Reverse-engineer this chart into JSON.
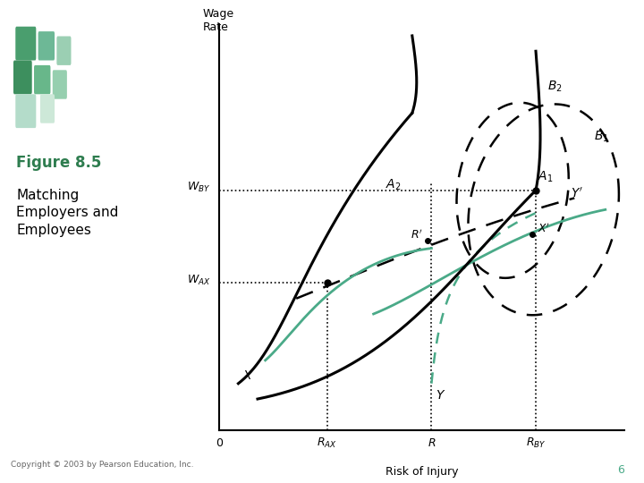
{
  "title_bold": "Figure 8.5",
  "title_normal": "Matching\nEmployers and\nEmployees",
  "title_color": "#2e7d4f",
  "xlabel": "Risk of Injury",
  "ylabel": "Wage\nRate",
  "copyright": "Copyright © 2003 by Pearson Education, Inc.",
  "page_num": "6",
  "bg_color": "#ffffff",
  "teal_color": "#4aaa88",
  "black": "#000000",
  "gray": "#555555",
  "rax": 0.28,
  "r": 0.55,
  "rby": 0.82,
  "wax": 0.38,
  "wby": 0.62
}
